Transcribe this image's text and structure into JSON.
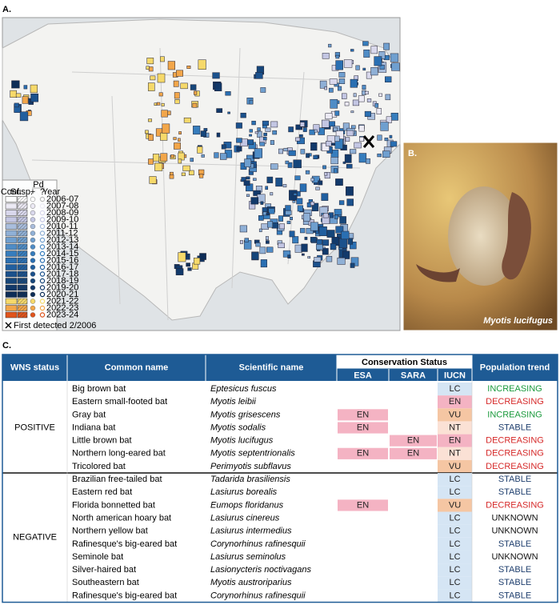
{
  "panels": {
    "a": "A.",
    "b": "B.",
    "c": "C."
  },
  "legend": {
    "pd": "Pd",
    "headers": [
      "Conf.",
      "Susp.",
      "+",
      "?",
      "Year"
    ],
    "years": [
      "2006-07",
      "2007-08",
      "2008-09",
      "2009-10",
      "2010-11",
      "2011-12",
      "2012-13",
      "2013-14",
      "2014-15",
      "2015-16",
      "2016-17",
      "2017-18",
      "2018-19",
      "2019-20",
      "2020-21",
      "2021-22",
      "2022-23",
      "2023-24"
    ],
    "year_colors": [
      "#ffffff",
      "#eceaf4",
      "#d9d8ec",
      "#c3c6e3",
      "#a9bddc",
      "#8fb0d6",
      "#6f9fcf",
      "#4f8cc6",
      "#367dbd",
      "#2a6fb2",
      "#215f9f",
      "#1b518c",
      "#16467a",
      "#12396a",
      "#0d2d57",
      "#f6d96a",
      "#f2a64a",
      "#e0541c"
    ],
    "first_detected": "First detected 2/2006"
  },
  "photo": {
    "caption": "Myotis lucifugus"
  },
  "table": {
    "headers": [
      "WNS status",
      "Common name",
      "Scientific name",
      "Population trend"
    ],
    "conservation": "Conservation Status",
    "subheaders": [
      "ESA",
      "SARA",
      "IUCN"
    ],
    "groups": [
      {
        "name": "POSITIVE",
        "rows": [
          [
            "Big brown bat",
            "Eptesicus fuscus",
            null,
            null,
            "LC",
            "INCREASING"
          ],
          [
            "Eastern small-footed bat",
            "Myotis leibii",
            null,
            null,
            "EN",
            "DECREASING"
          ],
          [
            "Gray bat",
            "Myotis grisescens",
            "EN",
            null,
            "VU",
            "INCREASING"
          ],
          [
            "Indiana bat",
            "Myotis sodalis",
            "EN",
            null,
            "NT",
            "STABLE"
          ],
          [
            "Little brown bat",
            "Myotis lucifugus",
            null,
            "EN",
            "EN",
            "DECREASING"
          ],
          [
            "Northern long-eared bat",
            "Myotis septentrionalis",
            "EN",
            "EN",
            "NT",
            "DECREASING"
          ],
          [
            "Tricolored bat",
            "Perimyotis subflavus",
            null,
            null,
            "VU",
            "DECREASING"
          ]
        ]
      },
      {
        "name": "NEGATIVE",
        "rows": [
          [
            "Brazilian free-tailed bat",
            "Tadarida brasiliensis",
            null,
            null,
            "LC",
            "STABLE"
          ],
          [
            "Eastern red bat",
            "Lasiurus borealis",
            null,
            null,
            "LC",
            "STABLE"
          ],
          [
            "Florida bonnetted bat",
            "Eumops floridanus",
            "EN",
            null,
            "VU",
            "DECREASING"
          ],
          [
            "North american hoary bat",
            "Lasiurus cinereus",
            null,
            null,
            "LC",
            "UNKNOWN"
          ],
          [
            "Northern yellow bat",
            "Lasiurus intermedius",
            null,
            null,
            "LC",
            "UNKNOWN"
          ],
          [
            "Rafinesque's big-eared bat",
            "Corynorhinus rafinesquii",
            null,
            null,
            "LC",
            "STABLE"
          ],
          [
            "Seminole bat",
            "Lasiurus seminolus",
            null,
            null,
            "LC",
            "UNKNOWN"
          ],
          [
            "Silver-haired bat",
            "Lasionycteris noctivagans",
            null,
            null,
            "LC",
            "STABLE"
          ],
          [
            "Southeastern bat",
            "Myotis austroriparius",
            null,
            null,
            "LC",
            "STABLE"
          ],
          [
            "Rafinesque's big-eared bat",
            "Corynorhinus rafinesquii",
            null,
            null,
            "LC",
            "STABLE"
          ]
        ]
      }
    ],
    "cell_colors": {
      "EN": "#f4b3c3",
      "VU": "#f5c6a3",
      "NT": "#fbe1d5",
      "LC": "#d5e5f4"
    },
    "trend_colors": {
      "INCREASING": "#1a9a3c",
      "DECREASING": "#d62a2a",
      "STABLE": "#1f3f6e",
      "UNKNOWN": "#111111"
    }
  }
}
